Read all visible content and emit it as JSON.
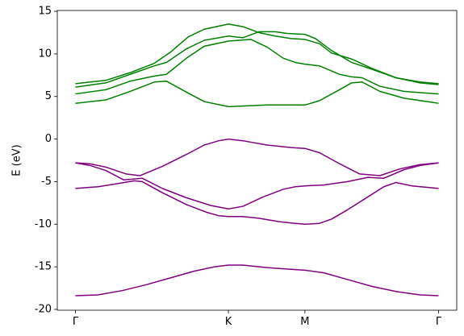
{
  "chart_data": {
    "type": "line",
    "ylabel": "E (eV)",
    "xlim": [
      -22.5,
      473.5
    ],
    "ylim": [
      -20.1,
      15.1
    ],
    "xticks": [
      {
        "value": 0,
        "label": "Γ"
      },
      {
        "value": 190,
        "label": "K"
      },
      {
        "value": 285,
        "label": "M"
      },
      {
        "value": 451,
        "label": "Γ"
      }
    ],
    "yticks": [
      -20,
      -15,
      -10,
      -5,
      0,
      5,
      10,
      15
    ],
    "series": [
      {
        "color": "#008000",
        "x": [
          0,
          38,
          68,
          98,
          113,
          138,
          160,
          190,
          238,
          285,
          303,
          328,
          343,
          356,
          378,
          408,
          451
        ],
        "values": [
          4.2,
          4.6,
          5.6,
          6.7,
          6.8,
          5.5,
          4.4,
          3.8,
          4.0,
          4.0,
          4.5,
          5.8,
          6.6,
          6.7,
          5.6,
          4.8,
          4.2
        ]
      },
      {
        "color": "#008000",
        "x": [
          0,
          38,
          68,
          98,
          113,
          138,
          160,
          190,
          218,
          238,
          258,
          273,
          285,
          303,
          328,
          343,
          356,
          378,
          408,
          451
        ],
        "values": [
          5.3,
          5.8,
          6.8,
          7.4,
          7.6,
          9.5,
          10.9,
          11.5,
          11.7,
          10.8,
          9.5,
          9.0,
          8.8,
          8.6,
          7.6,
          7.3,
          7.2,
          6.2,
          5.6,
          5.3
        ]
      },
      {
        "color": "#008000",
        "x": [
          0,
          38,
          68,
          98,
          113,
          138,
          160,
          190,
          208,
          228,
          248,
          263,
          285,
          298,
          318,
          343,
          368,
          398,
          428,
          451
        ],
        "values": [
          6.1,
          6.6,
          7.6,
          8.6,
          9.0,
          10.6,
          11.6,
          12.1,
          11.9,
          12.6,
          12.6,
          12.4,
          12.3,
          11.8,
          10.4,
          9.0,
          8.2,
          7.2,
          6.6,
          6.4
        ]
      },
      {
        "color": "#008000",
        "x": [
          0,
          38,
          68,
          98,
          118,
          140,
          160,
          190,
          208,
          228,
          248,
          268,
          285,
          303,
          318,
          343,
          368,
          398,
          428,
          451
        ],
        "values": [
          6.5,
          6.9,
          7.8,
          8.9,
          10.2,
          12.0,
          12.9,
          13.5,
          13.2,
          12.5,
          12.1,
          11.8,
          11.7,
          11.2,
          10.1,
          9.4,
          8.3,
          7.2,
          6.7,
          6.5
        ]
      },
      {
        "color": "#800080",
        "x": [
          0,
          18,
          38,
          63,
          80,
          108,
          138,
          160,
          178,
          190,
          208,
          238,
          268,
          285,
          303,
          328,
          353,
          378,
          403,
          428,
          451
        ],
        "values": [
          -2.8,
          -2.9,
          -3.3,
          -4.1,
          -4.3,
          -3.2,
          -1.8,
          -0.7,
          -0.2,
          0.0,
          -0.2,
          -0.7,
          -1.0,
          -1.1,
          -1.6,
          -2.9,
          -4.1,
          -4.3,
          -3.5,
          -3.0,
          -2.8
        ]
      },
      {
        "color": "#800080",
        "x": [
          0,
          18,
          38,
          60,
          83,
          108,
          138,
          168,
          190,
          208,
          233,
          258,
          273,
          285,
          308,
          338,
          363,
          383,
          408,
          428,
          451
        ],
        "values": [
          -2.8,
          -3.1,
          -3.7,
          -4.8,
          -4.6,
          -5.8,
          -6.9,
          -7.8,
          -8.2,
          -7.9,
          -6.8,
          -5.9,
          -5.6,
          -5.5,
          -5.4,
          -5.0,
          -4.5,
          -4.6,
          -3.6,
          -3.1,
          -2.8
        ]
      },
      {
        "color": "#800080",
        "x": [
          0,
          28,
          48,
          73,
          83,
          108,
          138,
          163,
          178,
          190,
          208,
          228,
          253,
          273,
          285,
          303,
          318,
          338,
          363,
          383,
          398,
          418,
          451
        ],
        "values": [
          -5.8,
          -5.6,
          -5.3,
          -4.9,
          -5.0,
          -6.3,
          -7.7,
          -8.6,
          -9.0,
          -9.1,
          -9.1,
          -9.3,
          -9.7,
          -9.9,
          -10.0,
          -9.9,
          -9.4,
          -8.3,
          -6.8,
          -5.6,
          -5.1,
          -5.5,
          -5.8
        ]
      },
      {
        "color": "#800080",
        "x": [
          0,
          28,
          58,
          88,
          118,
          148,
          173,
          190,
          208,
          238,
          268,
          285,
          308,
          338,
          368,
          398,
          428,
          451
        ],
        "values": [
          -18.4,
          -18.3,
          -17.8,
          -17.1,
          -16.3,
          -15.5,
          -15.0,
          -14.8,
          -14.8,
          -15.1,
          -15.3,
          -15.4,
          -15.7,
          -16.5,
          -17.3,
          -17.9,
          -18.3,
          -18.4
        ]
      }
    ]
  }
}
